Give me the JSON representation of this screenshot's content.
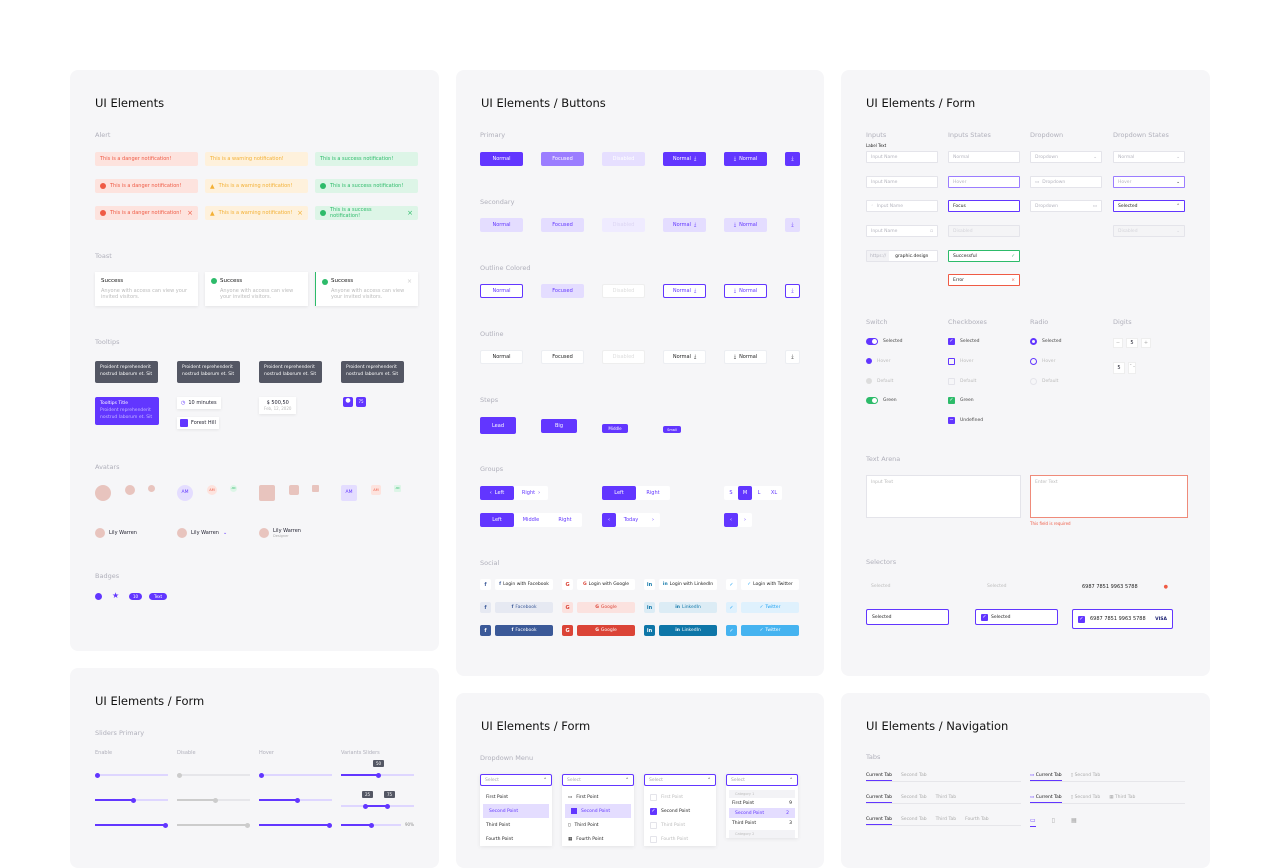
{
  "colors": {
    "primary": "#6236ff",
    "danger": "#ef5b45",
    "warning": "#f3b034",
    "success": "#2dbb6a",
    "panel": "#f6f6f8"
  },
  "panel1": {
    "title": "UI Elements",
    "alert_label": "Alert",
    "danger": "This is a danger notification!",
    "warning": "This is a warning notification!",
    "success": "This is a success notification!",
    "close": "×",
    "toast_label": "Toast",
    "toast_title": "Success",
    "toast_body": "Anyone with access can view your invited visitors.",
    "tooltips_label": "Tooltips",
    "tip_text": "Proident reprehenderit nostrud laborum et. Sit",
    "tip_title": "Tooltips Title",
    "tip_minutes": "10 minutes",
    "tip_forest": "Forest Hill",
    "tip_price": "$ 500,50",
    "tip_date": "Feb, 12, 2020",
    "tip_num": "75",
    "avatars_label": "Avatars",
    "am": "AM",
    "user_name": "Lily Warren",
    "user_role": "Designer",
    "badges_label": "Badges",
    "badge_num": "10",
    "badge_text": "Text"
  },
  "panel2": {
    "title": "UI Elements / Buttons",
    "primary": "Primary",
    "secondary": "Secondary",
    "outline_colored": "Outline Colored",
    "outline": "Outline",
    "normal": "Normal",
    "focused": "Focused",
    "disabled": "Disabled",
    "steps": "Steps",
    "lead": "Lead",
    "big": "Big",
    "middle": "Middle",
    "small": "Small",
    "groups": "Groups",
    "left": "Left",
    "right": "Right",
    "middle_g": "Middle",
    "today": "Today",
    "sizes": [
      "S",
      "M",
      "L",
      "XL"
    ],
    "social": "Social",
    "login_facebook": "Login with Facebook",
    "login_google": "Login with Google",
    "login_linkedin": "Login with LinkedIn",
    "login_twitter": "Login with Twitter",
    "facebook": "Facebook",
    "google": "Google",
    "linkedin": "LinkedIn",
    "twitter": "Twitter"
  },
  "panel3": {
    "title": "UI Elements / Form",
    "inputs": "Inputs",
    "inputs_states": "Inputs States",
    "dropdown": "Dropdown",
    "dropdown_states": "Dropdown States",
    "label_text": "Label Text",
    "input_name": "Input Name",
    "normal": "Normal",
    "hover": "Hover",
    "focus": "Focus",
    "disabled": "Disabled",
    "successful": "Successful",
    "error": "Error",
    "selected": "Selected",
    "prefix": "https://",
    "prefix_value": "graphic.design",
    "switch": "Switch",
    "checkboxes": "Checkboxes",
    "radio": "Radio",
    "digits": "Digits",
    "default": "Default",
    "green": "Green",
    "undefined": "Undefined",
    "digit_value": "5",
    "minus": "−",
    "plus": "+",
    "text_arena": "Text Arena",
    "input_text": "Input Text",
    "enter_text": "Enter Text",
    "required": "This field is required",
    "selectors": "Selectors",
    "card": "6987 7851 9963 5788",
    "visa": "VISA"
  },
  "panel4": {
    "title": "UI Elements / Form",
    "sliders_primary": "Sliders Primary",
    "enable": "Enable",
    "disable": "Disable",
    "hover": "Hover",
    "variants": "Variants Sliders",
    "v50": "50",
    "v25": "25",
    "v75": "75",
    "v90": "90%"
  },
  "panel5": {
    "title": "UI Elements / Form",
    "dropdown_menu": "Dropdown Menu",
    "select": "Select",
    "first": "First Point",
    "second": "Second Point",
    "third": "Third Point",
    "fourth": "Fourth Point",
    "category1": "Category 1",
    "category2": "Category 2",
    "count1": "9",
    "count2": "2",
    "count3": "3"
  },
  "panel6": {
    "title": "UI Elements / Navigation",
    "tabs": "Tabs",
    "current_tab": "Current Tab",
    "second_tab": "Second Tab",
    "third_tab": "Third Tab",
    "fourth_tab": "Fourth Tab"
  }
}
